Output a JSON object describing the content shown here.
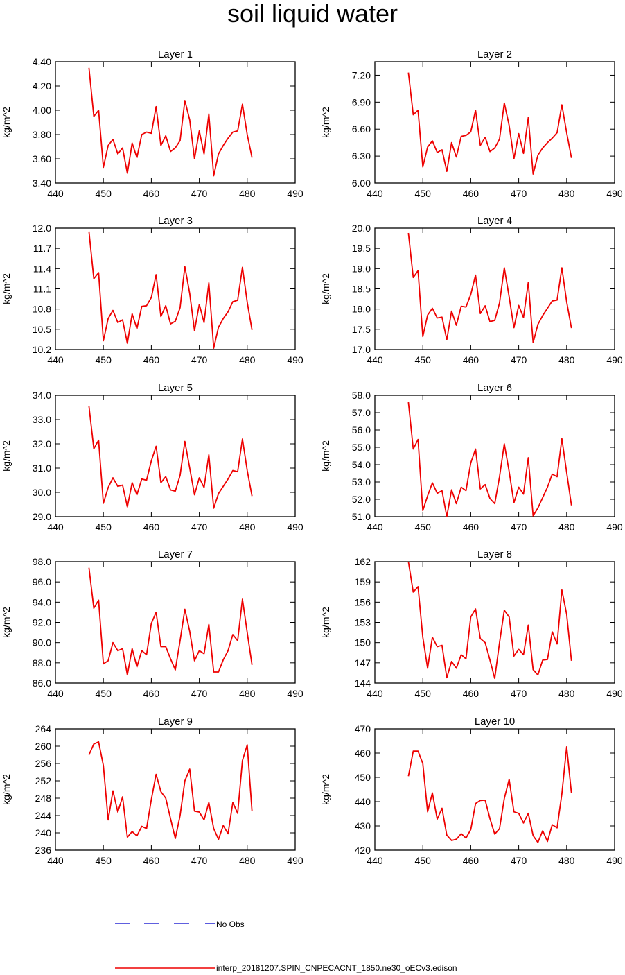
{
  "title": "soil liquid water",
  "legend": {
    "obs_label": "No Obs",
    "obs_color": "#0000cc",
    "model_label": "interp_20181207.SPIN_CNPECACNT_1850.ne30_oECv3.edison",
    "model_color": "#ee0000"
  },
  "chart_data": [
    {
      "type": "line",
      "title": "Layer 1",
      "ylabel": "kg/m^2",
      "xlabel": "",
      "xlim": [
        440,
        490
      ],
      "xticks": [
        "440",
        "450",
        "460",
        "470",
        "480",
        "490"
      ],
      "ylim": [
        3.4,
        4.4
      ],
      "yticks": [
        "3.40",
        "3.60",
        "3.80",
        "4.00",
        "4.20",
        "4.40"
      ],
      "x": [
        447,
        448,
        449,
        450,
        451,
        452,
        453,
        454,
        455,
        456,
        457,
        458,
        459,
        460,
        461,
        462,
        463,
        464,
        465,
        466,
        467,
        468,
        469,
        470,
        471,
        472,
        473,
        474,
        475,
        476,
        477,
        478,
        479,
        480,
        481
      ],
      "series": [
        {
          "name": "interp_20181207.SPIN_CNPECACNT_1850.ne30_oECv3.edison",
          "values": [
            4.35,
            3.95,
            4.0,
            3.53,
            3.71,
            3.76,
            3.64,
            3.69,
            3.48,
            3.73,
            3.61,
            3.8,
            3.82,
            3.81,
            4.03,
            3.71,
            3.79,
            3.66,
            3.69,
            3.75,
            4.08,
            3.92,
            3.6,
            3.83,
            3.64,
            3.97,
            3.46,
            3.64,
            3.71,
            3.77,
            3.82,
            3.83,
            4.05,
            3.8,
            3.61
          ]
        }
      ]
    },
    {
      "type": "line",
      "title": "Layer 2",
      "ylabel": "kg/m^2",
      "xlabel": "",
      "xlim": [
        440,
        490
      ],
      "xticks": [
        "440",
        "450",
        "460",
        "470",
        "480",
        "490"
      ],
      "ylim": [
        6.0,
        7.35
      ],
      "yticks": [
        "6.00",
        "6.30",
        "6.60",
        "6.90",
        "7.20"
      ],
      "x": [
        447,
        448,
        449,
        450,
        451,
        452,
        453,
        454,
        455,
        456,
        457,
        458,
        459,
        460,
        461,
        462,
        463,
        464,
        465,
        466,
        467,
        468,
        469,
        470,
        471,
        472,
        473,
        474,
        475,
        476,
        477,
        478,
        479,
        480,
        481
      ],
      "series": [
        {
          "name": "interp_20181207.SPIN_CNPECACNT_1850.ne30_oECv3.edison",
          "values": [
            7.23,
            6.76,
            6.81,
            6.18,
            6.4,
            6.47,
            6.34,
            6.37,
            6.13,
            6.45,
            6.29,
            6.52,
            6.53,
            6.57,
            6.81,
            6.42,
            6.51,
            6.35,
            6.39,
            6.49,
            6.89,
            6.64,
            6.27,
            6.55,
            6.33,
            6.73,
            6.1,
            6.31,
            6.39,
            6.45,
            6.5,
            6.56,
            6.87,
            6.56,
            6.28
          ]
        }
      ]
    },
    {
      "type": "line",
      "title": "Layer 3",
      "ylabel": "kg/m^2",
      "xlabel": "",
      "xlim": [
        440,
        490
      ],
      "xticks": [
        "440",
        "450",
        "460",
        "470",
        "480",
        "490"
      ],
      "ylim": [
        10.2,
        12.0
      ],
      "yticks": [
        "10.2",
        "10.5",
        "10.8",
        "11.1",
        "11.4",
        "11.7",
        "12.0"
      ],
      "x": [
        447,
        448,
        449,
        450,
        451,
        452,
        453,
        454,
        455,
        456,
        457,
        458,
        459,
        460,
        461,
        462,
        463,
        464,
        465,
        466,
        467,
        468,
        469,
        470,
        471,
        472,
        473,
        474,
        475,
        476,
        477,
        478,
        479,
        480,
        481
      ],
      "series": [
        {
          "name": "interp_20181207.SPIN_CNPECACNT_1850.ne30_oECv3.edison",
          "values": [
            11.95,
            11.25,
            11.34,
            10.33,
            10.66,
            10.78,
            10.6,
            10.64,
            10.29,
            10.73,
            10.51,
            10.84,
            10.85,
            10.97,
            11.31,
            10.69,
            10.85,
            10.58,
            10.62,
            10.82,
            11.43,
            11.03,
            10.48,
            10.87,
            10.6,
            11.19,
            10.22,
            10.53,
            10.66,
            10.76,
            10.91,
            10.93,
            11.42,
            10.9,
            10.49
          ]
        }
      ]
    },
    {
      "type": "line",
      "title": "Layer 4",
      "ylabel": "kg/m^2",
      "xlabel": "",
      "xlim": [
        440,
        490
      ],
      "xticks": [
        "440",
        "450",
        "460",
        "470",
        "480",
        "490"
      ],
      "ylim": [
        17.0,
        20.0
      ],
      "yticks": [
        "17.0",
        "17.5",
        "18.0",
        "18.5",
        "19.0",
        "19.5",
        "20.0"
      ],
      "x": [
        447,
        448,
        449,
        450,
        451,
        452,
        453,
        454,
        455,
        456,
        457,
        458,
        459,
        460,
        461,
        462,
        463,
        464,
        465,
        466,
        467,
        468,
        469,
        470,
        471,
        472,
        473,
        474,
        475,
        476,
        477,
        478,
        479,
        480,
        481
      ],
      "series": [
        {
          "name": "interp_20181207.SPIN_CNPECACNT_1850.ne30_oECv3.edison",
          "values": [
            19.88,
            18.78,
            18.95,
            17.32,
            17.85,
            18.02,
            17.78,
            17.8,
            17.24,
            17.95,
            17.6,
            18.07,
            18.05,
            18.36,
            18.84,
            17.89,
            18.08,
            17.69,
            17.72,
            18.15,
            19.02,
            18.3,
            17.54,
            18.09,
            17.79,
            18.66,
            17.17,
            17.62,
            17.84,
            18.02,
            18.2,
            18.22,
            19.02,
            18.18,
            17.53
          ]
        }
      ]
    },
    {
      "type": "line",
      "title": "Layer 5",
      "ylabel": "kg/m^2",
      "xlabel": "",
      "xlim": [
        440,
        490
      ],
      "xticks": [
        "440",
        "450",
        "460",
        "470",
        "480",
        "490"
      ],
      "ylim": [
        29.0,
        34.0
      ],
      "yticks": [
        "29.0",
        "30.0",
        "31.0",
        "32.0",
        "33.0",
        "34.0"
      ],
      "x": [
        447,
        448,
        449,
        450,
        451,
        452,
        453,
        454,
        455,
        456,
        457,
        458,
        459,
        460,
        461,
        462,
        463,
        464,
        465,
        466,
        467,
        468,
        469,
        470,
        471,
        472,
        473,
        474,
        475,
        476,
        477,
        478,
        479,
        480,
        481
      ],
      "series": [
        {
          "name": "interp_20181207.SPIN_CNPECACNT_1850.ne30_oECv3.edison",
          "values": [
            33.55,
            31.8,
            32.15,
            29.55,
            30.2,
            30.6,
            30.25,
            30.3,
            29.4,
            30.4,
            29.9,
            30.55,
            30.5,
            31.3,
            31.9,
            30.4,
            30.65,
            30.1,
            30.05,
            30.7,
            32.1,
            31.0,
            29.9,
            30.6,
            30.2,
            31.55,
            29.35,
            29.95,
            30.25,
            30.55,
            30.9,
            30.85,
            32.2,
            30.9,
            29.85
          ]
        }
      ]
    },
    {
      "type": "line",
      "title": "Layer 6",
      "ylabel": "kg/m^2",
      "xlabel": "",
      "xlim": [
        440,
        490
      ],
      "xticks": [
        "440",
        "450",
        "460",
        "470",
        "480",
        "490"
      ],
      "ylim": [
        51.0,
        58.0
      ],
      "yticks": [
        "51.0",
        "52.0",
        "53.0",
        "54.0",
        "55.0",
        "56.0",
        "57.0",
        "58.0"
      ],
      "x": [
        447,
        448,
        449,
        450,
        451,
        452,
        453,
        454,
        455,
        456,
        457,
        458,
        459,
        460,
        461,
        462,
        463,
        464,
        465,
        466,
        467,
        468,
        469,
        470,
        471,
        472,
        473,
        474,
        475,
        476,
        477,
        478,
        479,
        480,
        481
      ],
      "series": [
        {
          "name": "interp_20181207.SPIN_CNPECACNT_1850.ne30_oECv3.edison",
          "values": [
            57.6,
            54.9,
            55.45,
            51.35,
            52.2,
            52.95,
            52.35,
            52.5,
            51.0,
            52.55,
            51.75,
            52.7,
            52.5,
            54.1,
            54.9,
            52.6,
            52.85,
            52.05,
            51.75,
            53.3,
            55.2,
            53.6,
            51.8,
            52.7,
            52.3,
            54.4,
            51.05,
            51.5,
            52.1,
            52.7,
            53.45,
            53.3,
            55.5,
            53.55,
            51.65
          ]
        }
      ]
    },
    {
      "type": "line",
      "title": "Layer 7",
      "ylabel": "kg/m^2",
      "xlabel": "",
      "xlim": [
        440,
        490
      ],
      "xticks": [
        "440",
        "450",
        "460",
        "470",
        "480",
        "490"
      ],
      "ylim": [
        86.0,
        98.0
      ],
      "yticks": [
        "86.0",
        "88.0",
        "90.0",
        "92.0",
        "94.0",
        "96.0",
        "98.0"
      ],
      "x": [
        447,
        448,
        449,
        450,
        451,
        452,
        453,
        454,
        455,
        456,
        457,
        458,
        459,
        460,
        461,
        462,
        463,
        464,
        465,
        466,
        467,
        468,
        469,
        470,
        471,
        472,
        473,
        474,
        475,
        476,
        477,
        478,
        479,
        480,
        481
      ],
      "series": [
        {
          "name": "interp_20181207.SPIN_CNPECACNT_1850.ne30_oECv3.edison",
          "values": [
            97.4,
            93.4,
            94.2,
            87.9,
            88.2,
            90.0,
            89.2,
            89.4,
            86.8,
            89.4,
            87.6,
            89.2,
            88.8,
            91.9,
            93.0,
            89.6,
            89.6,
            88.4,
            87.3,
            90.2,
            93.3,
            91.1,
            88.2,
            89.2,
            88.9,
            91.8,
            87.1,
            87.1,
            88.3,
            89.2,
            90.8,
            90.2,
            94.3,
            91.0,
            87.8
          ]
        }
      ]
    },
    {
      "type": "line",
      "title": "Layer 8",
      "ylabel": "kg/m^2",
      "xlabel": "",
      "xlim": [
        440,
        490
      ],
      "xticks": [
        "440",
        "450",
        "460",
        "470",
        "480",
        "490"
      ],
      "ylim": [
        144,
        162
      ],
      "yticks": [
        "144",
        "147",
        "150",
        "153",
        "156",
        "159",
        "162"
      ],
      "x": [
        447,
        448,
        449,
        450,
        451,
        452,
        453,
        454,
        455,
        456,
        457,
        458,
        459,
        460,
        461,
        462,
        463,
        464,
        465,
        466,
        467,
        468,
        469,
        470,
        471,
        472,
        473,
        474,
        475,
        476,
        477,
        478,
        479,
        480,
        481
      ],
      "series": [
        {
          "name": "interp_20181207.SPIN_CNPECACNT_1850.ne30_oECv3.edison",
          "values": [
            162.0,
            157.5,
            158.3,
            150.8,
            146.2,
            150.8,
            149.4,
            149.6,
            144.8,
            147.2,
            146.2,
            148.2,
            147.6,
            153.8,
            155.0,
            150.6,
            150.0,
            147.4,
            144.7,
            150.0,
            154.8,
            153.8,
            148.0,
            149.0,
            148.2,
            152.6,
            146.0,
            145.2,
            147.4,
            147.5,
            151.6,
            149.8,
            157.8,
            154.2,
            147.3
          ]
        }
      ]
    },
    {
      "type": "line",
      "title": "Layer 9",
      "ylabel": "kg/m^2",
      "xlabel": "",
      "xlim": [
        440,
        490
      ],
      "xticks": [
        "440",
        "450",
        "460",
        "470",
        "480",
        "490"
      ],
      "ylim": [
        236,
        264
      ],
      "yticks": [
        "236",
        "240",
        "244",
        "248",
        "252",
        "256",
        "260",
        "264"
      ],
      "x": [
        447,
        448,
        449,
        450,
        451,
        452,
        453,
        454,
        455,
        456,
        457,
        458,
        459,
        460,
        461,
        462,
        463,
        464,
        465,
        466,
        467,
        468,
        469,
        470,
        471,
        472,
        473,
        474,
        475,
        476,
        477,
        478,
        479,
        480,
        481
      ],
      "series": [
        {
          "name": "interp_20181207.SPIN_CNPECACNT_1850.ne30_oECv3.edison",
          "values": [
            258.0,
            260.5,
            261.0,
            255.5,
            243.0,
            249.7,
            244.8,
            248.3,
            239.0,
            240.3,
            239.3,
            241.5,
            241.0,
            247.7,
            253.5,
            249.5,
            248.0,
            243.3,
            238.7,
            244.0,
            252.0,
            254.7,
            245.0,
            244.8,
            243.0,
            247.0,
            241.0,
            238.5,
            241.7,
            239.8,
            247.0,
            244.5,
            256.7,
            260.3,
            245.0
          ]
        }
      ]
    },
    {
      "type": "line",
      "title": "Layer 10",
      "ylabel": "kg/m^2",
      "xlabel": "",
      "xlim": [
        440,
        490
      ],
      "xticks": [
        "440",
        "450",
        "460",
        "470",
        "480",
        "490"
      ],
      "ylim": [
        420,
        470
      ],
      "yticks": [
        "420",
        "430",
        "440",
        "450",
        "460",
        "470"
      ],
      "x": [
        447,
        448,
        449,
        450,
        451,
        452,
        453,
        454,
        455,
        456,
        457,
        458,
        459,
        460,
        461,
        462,
        463,
        464,
        465,
        466,
        467,
        468,
        469,
        470,
        471,
        472,
        473,
        474,
        475,
        476,
        477,
        478,
        479,
        480,
        481
      ],
      "series": [
        {
          "name": "interp_20181207.SPIN_CNPECACNT_1850.ne30_oECv3.edison",
          "values": [
            450.5,
            460.8,
            460.8,
            455.7,
            435.8,
            443.6,
            432.8,
            437.3,
            426.2,
            424.0,
            424.5,
            426.8,
            425.0,
            428.5,
            439.2,
            440.5,
            440.6,
            433.0,
            426.6,
            428.9,
            441.3,
            449.2,
            435.8,
            435.2,
            431.2,
            435.2,
            426.0,
            423.2,
            428.0,
            423.6,
            430.5,
            429.2,
            443.2,
            462.6,
            443.5
          ]
        }
      ]
    }
  ]
}
